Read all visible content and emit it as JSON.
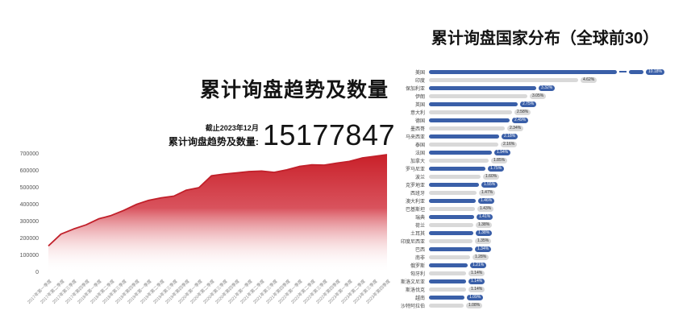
{
  "chart_data": [
    {
      "type": "area",
      "title": "累计询盘趋势及数量",
      "as_of": "截止2023年12月",
      "total_label": "累计询盘趋势及数量:",
      "total_value": "15177847",
      "x": [
        "2017年第一季度",
        "2017年第二季度",
        "2017年第三季度",
        "2017年第四季度",
        "2018年第一季度",
        "2018年第二季度",
        "2018年第三季度",
        "2018年第四季度",
        "2019年第一季度",
        "2019年第二季度",
        "2019年第三季度",
        "2019年第四季度",
        "2020年第一季度",
        "2020年第二季度",
        "2020年第三季度",
        "2020年第四季度",
        "2021年第一季度",
        "2021年第二季度",
        "2021年第三季度",
        "2021年第四季度",
        "2022年第一季度",
        "2022年第二季度",
        "2022年第三季度",
        "2022年第四季度",
        "2023年第一季度",
        "2023年第二季度",
        "2023年第三季度",
        "2023年第四季度"
      ],
      "values": [
        160000,
        230000,
        260000,
        285000,
        320000,
        340000,
        370000,
        405000,
        430000,
        445000,
        455000,
        490000,
        505000,
        575000,
        585000,
        592000,
        600000,
        603000,
        595000,
        610000,
        630000,
        640000,
        638000,
        650000,
        660000,
        680000,
        690000,
        700000
      ],
      "y_ticks": [
        "700000",
        "600000",
        "500000",
        "400000",
        "300000",
        "200000",
        "100000",
        "0"
      ],
      "ylim": [
        0,
        700000
      ],
      "grid": false,
      "x_label_rotation": -45,
      "area_color": "#c92029",
      "line_color": "#c1202a"
    },
    {
      "type": "bar",
      "orientation": "horizontal",
      "title": "累计询盘国家分布（全球前30）",
      "unit": "%",
      "axis_break_on_first_bar": true,
      "bar_color_blue": "#3a5fa8",
      "bar_color_gray": "#d9d9d9",
      "items": [
        {
          "label": "美国",
          "value": 10.18,
          "pct": "10.18%",
          "color": "blue",
          "broken": true
        },
        {
          "label": "印度",
          "value": 4.62,
          "pct": "4.62%",
          "color": "gray"
        },
        {
          "label": "保加利亚",
          "value": 3.32,
          "pct": "3.32%",
          "color": "blue"
        },
        {
          "label": "伊朗",
          "value": 3.05,
          "pct": "3.05%",
          "color": "gray"
        },
        {
          "label": "英国",
          "value": 2.75,
          "pct": "2.75%",
          "color": "blue"
        },
        {
          "label": "意大利",
          "value": 2.58,
          "pct": "2.58%",
          "color": "gray"
        },
        {
          "label": "德国",
          "value": 2.49,
          "pct": "2.49%",
          "color": "blue"
        },
        {
          "label": "墨西哥",
          "value": 2.34,
          "pct": "2.34%",
          "color": "gray"
        },
        {
          "label": "马来西亚",
          "value": 2.18,
          "pct": "2.18%",
          "color": "blue"
        },
        {
          "label": "泰国",
          "value": 2.16,
          "pct": "2.16%",
          "color": "gray"
        },
        {
          "label": "法国",
          "value": 1.94,
          "pct": "1.94%",
          "color": "blue"
        },
        {
          "label": "加拿大",
          "value": 1.85,
          "pct": "1.85%",
          "color": "gray"
        },
        {
          "label": "罗马尼亚",
          "value": 1.75,
          "pct": "1.75%",
          "color": "blue"
        },
        {
          "label": "波兰",
          "value": 1.6,
          "pct": "1.60%",
          "color": "gray"
        },
        {
          "label": "克罗地亚",
          "value": 1.55,
          "pct": "1.55%",
          "color": "blue"
        },
        {
          "label": "西班牙",
          "value": 1.47,
          "pct": "1.47%",
          "color": "gray"
        },
        {
          "label": "澳大利亚",
          "value": 1.46,
          "pct": "1.46%",
          "color": "blue"
        },
        {
          "label": "巴基斯坦",
          "value": 1.43,
          "pct": "1.43%",
          "color": "gray"
        },
        {
          "label": "瑞典",
          "value": 1.41,
          "pct": "1.41%",
          "color": "blue"
        },
        {
          "label": "荷兰",
          "value": 1.38,
          "pct": "1.38%",
          "color": "gray"
        },
        {
          "label": "土耳其",
          "value": 1.38,
          "pct": "1.38%",
          "color": "blue"
        },
        {
          "label": "印度尼西亚",
          "value": 1.35,
          "pct": "1.35%",
          "color": "gray"
        },
        {
          "label": "巴西",
          "value": 1.34,
          "pct": "1.34%",
          "color": "blue"
        },
        {
          "label": "南非",
          "value": 1.28,
          "pct": "1.28%",
          "color": "gray"
        },
        {
          "label": "俄罗斯",
          "value": 1.21,
          "pct": "1.21%",
          "color": "blue"
        },
        {
          "label": "匈牙利",
          "value": 1.14,
          "pct": "1.14%",
          "color": "gray"
        },
        {
          "label": "斯洛文尼亚",
          "value": 1.14,
          "pct": "1.14%",
          "color": "blue"
        },
        {
          "label": "斯洛伐克",
          "value": 1.14,
          "pct": "1.14%",
          "color": "gray"
        },
        {
          "label": "越南",
          "value": 1.09,
          "pct": "1.09%",
          "color": "blue"
        },
        {
          "label": "沙特阿拉伯",
          "value": 1.08,
          "pct": "1.08%",
          "color": "gray"
        }
      ]
    }
  ]
}
